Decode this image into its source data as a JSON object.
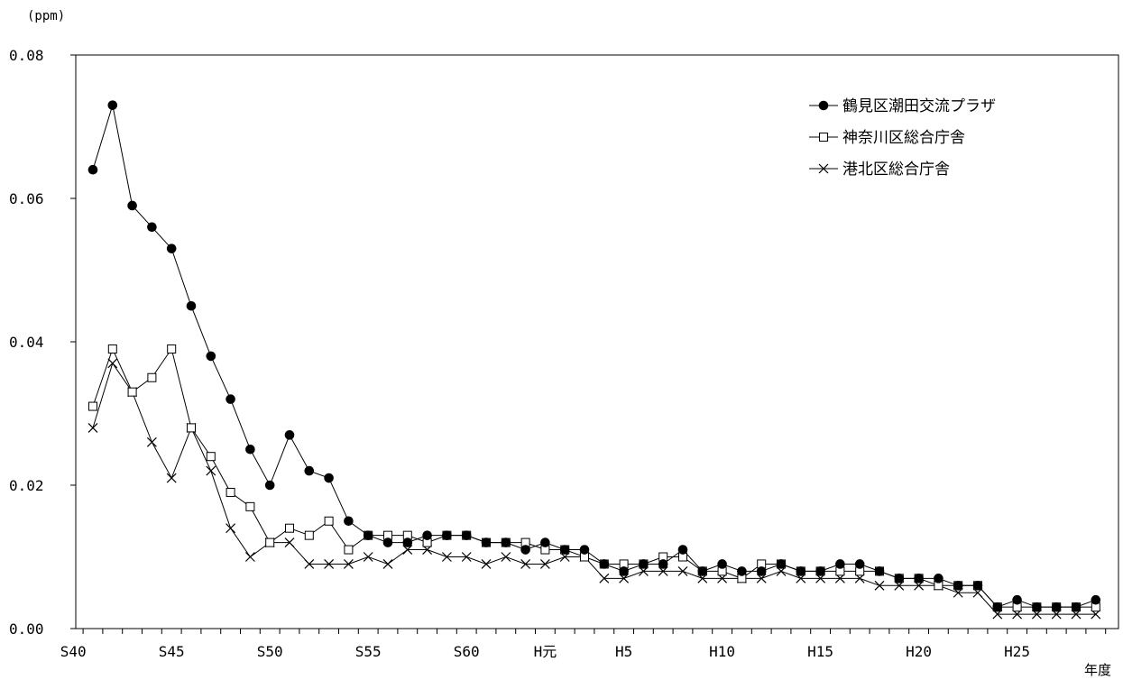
{
  "chart_data": {
    "type": "line",
    "title": "",
    "ylabel": "(ppm)",
    "xlabel": "年度",
    "ylim": [
      0,
      0.08
    ],
    "y_ticks": [
      "0.00",
      "0.02",
      "0.04",
      "0.06",
      "0.08"
    ],
    "y_tick_values": [
      0,
      0.02,
      0.04,
      0.06,
      0.08
    ],
    "x": [
      "S41",
      "S42",
      "S43",
      "S44",
      "S45",
      "S46",
      "S47",
      "S48",
      "S49",
      "S50",
      "S51",
      "S52",
      "S53",
      "S54",
      "S55",
      "S56",
      "S57",
      "S58",
      "S59",
      "S60",
      "S61",
      "S62",
      "S63",
      "H元",
      "H2",
      "H3",
      "H4",
      "H5",
      "H6",
      "H7",
      "H8",
      "H9",
      "H10",
      "H11",
      "H12",
      "H13",
      "H14",
      "H15",
      "H16",
      "H17",
      "H18",
      "H19",
      "H20",
      "H21",
      "H22",
      "H23",
      "H24",
      "H25",
      "H26",
      "H27",
      "H28",
      "H29"
    ],
    "x_tick_labels": [
      {
        "label": "S40",
        "index": -1
      },
      {
        "label": "S45",
        "index": 4
      },
      {
        "label": "S50",
        "index": 9
      },
      {
        "label": "S55",
        "index": 14
      },
      {
        "label": "S60",
        "index": 19
      },
      {
        "label": "H元",
        "index": 23
      },
      {
        "label": "H5",
        "index": 27
      },
      {
        "label": "H10",
        "index": 32
      },
      {
        "label": "H15",
        "index": 37
      },
      {
        "label": "H20",
        "index": 42
      },
      {
        "label": "H25",
        "index": 47
      }
    ],
    "grid": false,
    "legend_position": "top-right",
    "series": [
      {
        "name": "鶴見区潮田交流プラザ",
        "marker": "filled-circle",
        "color": "#000000",
        "values": [
          0.064,
          0.073,
          0.059,
          0.056,
          0.053,
          0.045,
          0.038,
          0.032,
          0.025,
          0.02,
          0.027,
          0.022,
          0.021,
          0.015,
          0.013,
          0.012,
          0.012,
          0.013,
          0.013,
          0.013,
          0.012,
          0.012,
          0.011,
          0.012,
          0.011,
          0.011,
          0.009,
          0.008,
          0.009,
          0.009,
          0.011,
          0.008,
          0.009,
          0.008,
          0.008,
          0.009,
          0.008,
          0.008,
          0.009,
          0.009,
          0.008,
          0.007,
          0.007,
          0.007,
          0.006,
          0.006,
          0.003,
          0.004,
          0.003,
          0.003,
          0.003,
          0.004
        ]
      },
      {
        "name": "神奈川区総合庁舎",
        "marker": "open-square",
        "color": "#000000",
        "values": [
          0.031,
          0.039,
          0.033,
          0.035,
          0.039,
          0.028,
          0.024,
          0.019,
          0.017,
          0.012,
          0.014,
          0.013,
          0.015,
          0.011,
          0.013,
          0.013,
          0.013,
          0.012,
          0.013,
          0.013,
          0.012,
          0.012,
          0.012,
          0.011,
          0.011,
          0.01,
          0.009,
          0.009,
          0.009,
          0.01,
          0.01,
          0.008,
          0.008,
          0.007,
          0.009,
          0.009,
          0.008,
          0.008,
          0.008,
          0.008,
          0.008,
          0.007,
          0.007,
          0.006,
          0.006,
          0.006,
          0.003,
          0.003,
          0.003,
          0.003,
          0.003,
          0.003
        ]
      },
      {
        "name": "港北区総合庁舎",
        "marker": "cross",
        "color": "#000000",
        "values": [
          0.028,
          0.037,
          0.033,
          0.026,
          0.021,
          0.028,
          0.022,
          0.014,
          0.01,
          0.012,
          0.012,
          0.009,
          0.009,
          0.009,
          0.01,
          0.009,
          0.011,
          0.011,
          0.01,
          0.01,
          0.009,
          0.01,
          0.009,
          0.009,
          0.01,
          0.01,
          0.007,
          0.007,
          0.008,
          0.008,
          0.008,
          0.007,
          0.007,
          0.007,
          0.007,
          0.008,
          0.007,
          0.007,
          0.007,
          0.007,
          0.006,
          0.006,
          0.006,
          0.006,
          0.005,
          0.005,
          0.002,
          0.002,
          0.002,
          0.002,
          0.002,
          0.002
        ]
      }
    ]
  }
}
